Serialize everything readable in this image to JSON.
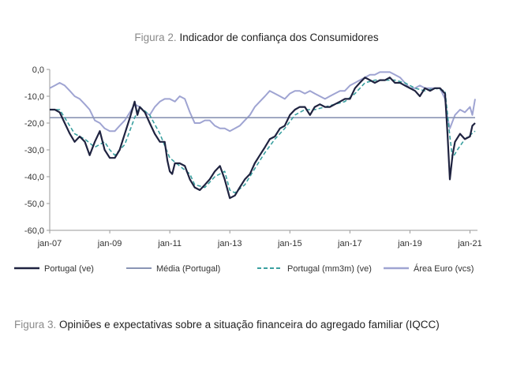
{
  "figure2": {
    "number": "Figura 2.",
    "title": "Indicador de confiança dos Consumidores"
  },
  "figure3": {
    "number": "Figura 3.",
    "title": "Opiniões e expectativas sobre a situação financeira do agregado familiar (IQCC)"
  },
  "chart_data": {
    "type": "line",
    "title": "Indicador de confiança dos Consumidores",
    "xlabel": "",
    "ylabel": "",
    "x_ticks": [
      "jan-07",
      "jan-09",
      "jan-11",
      "jan-13",
      "jan-15",
      "jan-17",
      "jan-19",
      "jan-21"
    ],
    "y_ticks": [
      "0,0",
      "-10,0",
      "-20,0",
      "-30,0",
      "-40,0",
      "-50,0",
      "-60,0"
    ],
    "ylim": [
      -60,
      0
    ],
    "grid": false,
    "legend_position": "bottom",
    "x_format": "year.month_fraction",
    "colors": {
      "portugal": "#1f2340",
      "media": "#8a95b4",
      "mm3m": "#3aa0a0",
      "area_euro": "#9fa4d2"
    },
    "series": [
      {
        "name": "Portugal (ve)",
        "style": "solid-dark",
        "points": [
          [
            2007.0,
            -15
          ],
          [
            2007.17,
            -15
          ],
          [
            2007.33,
            -16
          ],
          [
            2007.5,
            -20
          ],
          [
            2007.67,
            -24
          ],
          [
            2007.83,
            -27
          ],
          [
            2008.0,
            -25
          ],
          [
            2008.17,
            -27
          ],
          [
            2008.33,
            -32
          ],
          [
            2008.5,
            -27
          ],
          [
            2008.67,
            -23
          ],
          [
            2008.83,
            -30
          ],
          [
            2009.0,
            -33
          ],
          [
            2009.17,
            -33
          ],
          [
            2009.33,
            -30
          ],
          [
            2009.5,
            -24
          ],
          [
            2009.67,
            -18
          ],
          [
            2009.83,
            -12
          ],
          [
            2009.92,
            -17
          ],
          [
            2010.0,
            -14
          ],
          [
            2010.17,
            -16
          ],
          [
            2010.33,
            -20
          ],
          [
            2010.5,
            -24
          ],
          [
            2010.67,
            -27
          ],
          [
            2010.83,
            -27
          ],
          [
            2010.92,
            -34
          ],
          [
            2011.0,
            -38
          ],
          [
            2011.08,
            -39
          ],
          [
            2011.17,
            -35
          ],
          [
            2011.33,
            -35
          ],
          [
            2011.5,
            -36
          ],
          [
            2011.67,
            -41
          ],
          [
            2011.83,
            -44
          ],
          [
            2012.0,
            -45
          ],
          [
            2012.17,
            -43
          ],
          [
            2012.33,
            -41
          ],
          [
            2012.5,
            -38
          ],
          [
            2012.67,
            -36
          ],
          [
            2012.83,
            -41
          ],
          [
            2013.0,
            -48
          ],
          [
            2013.17,
            -47
          ],
          [
            2013.33,
            -44
          ],
          [
            2013.5,
            -41
          ],
          [
            2013.67,
            -39
          ],
          [
            2013.83,
            -35
          ],
          [
            2014.0,
            -32
          ],
          [
            2014.17,
            -29
          ],
          [
            2014.33,
            -26
          ],
          [
            2014.5,
            -25
          ],
          [
            2014.67,
            -22
          ],
          [
            2014.83,
            -21
          ],
          [
            2015.0,
            -17
          ],
          [
            2015.17,
            -15
          ],
          [
            2015.33,
            -14
          ],
          [
            2015.5,
            -14
          ],
          [
            2015.67,
            -17
          ],
          [
            2015.83,
            -14
          ],
          [
            2016.0,
            -13
          ],
          [
            2016.17,
            -14
          ],
          [
            2016.33,
            -14
          ],
          [
            2016.5,
            -13
          ],
          [
            2016.67,
            -12
          ],
          [
            2016.83,
            -11
          ],
          [
            2017.0,
            -11
          ],
          [
            2017.17,
            -7
          ],
          [
            2017.33,
            -5
          ],
          [
            2017.5,
            -3
          ],
          [
            2017.67,
            -4
          ],
          [
            2017.83,
            -5
          ],
          [
            2018.0,
            -4
          ],
          [
            2018.17,
            -4
          ],
          [
            2018.33,
            -3
          ],
          [
            2018.5,
            -5
          ],
          [
            2018.67,
            -5
          ],
          [
            2018.83,
            -6
          ],
          [
            2019.0,
            -7
          ],
          [
            2019.17,
            -8
          ],
          [
            2019.33,
            -10
          ],
          [
            2019.5,
            -7
          ],
          [
            2019.67,
            -8
          ],
          [
            2019.83,
            -7
          ],
          [
            2020.0,
            -7
          ],
          [
            2020.17,
            -9
          ],
          [
            2020.25,
            -24
          ],
          [
            2020.33,
            -41
          ],
          [
            2020.42,
            -32
          ],
          [
            2020.5,
            -27
          ],
          [
            2020.67,
            -24
          ],
          [
            2020.83,
            -26
          ],
          [
            2021.0,
            -25
          ],
          [
            2021.08,
            -21
          ],
          [
            2021.17,
            -20
          ]
        ]
      },
      {
        "name": "Média (Portugal)",
        "style": "solid-light",
        "points": [
          [
            2007.0,
            -18
          ],
          [
            2021.17,
            -18
          ]
        ]
      },
      {
        "name": "Portugal (mm3m) (ve)",
        "style": "dashed",
        "points": [
          [
            2007.0,
            -15
          ],
          [
            2007.33,
            -15
          ],
          [
            2007.5,
            -18
          ],
          [
            2007.83,
            -24
          ],
          [
            2008.17,
            -26
          ],
          [
            2008.5,
            -29
          ],
          [
            2008.83,
            -27
          ],
          [
            2009.0,
            -30
          ],
          [
            2009.17,
            -32
          ],
          [
            2009.5,
            -28
          ],
          [
            2009.83,
            -18
          ],
          [
            2010.0,
            -14
          ],
          [
            2010.33,
            -17
          ],
          [
            2010.67,
            -24
          ],
          [
            2011.0,
            -33
          ],
          [
            2011.33,
            -36
          ],
          [
            2011.67,
            -39
          ],
          [
            2011.83,
            -43
          ],
          [
            2012.17,
            -44
          ],
          [
            2012.5,
            -40
          ],
          [
            2012.83,
            -38
          ],
          [
            2013.0,
            -45
          ],
          [
            2013.17,
            -46
          ],
          [
            2013.5,
            -43
          ],
          [
            2013.83,
            -37
          ],
          [
            2014.17,
            -31
          ],
          [
            2014.5,
            -26
          ],
          [
            2014.83,
            -22
          ],
          [
            2015.17,
            -17
          ],
          [
            2015.5,
            -15
          ],
          [
            2015.83,
            -15
          ],
          [
            2016.17,
            -14
          ],
          [
            2016.5,
            -13
          ],
          [
            2016.83,
            -12
          ],
          [
            2017.17,
            -9
          ],
          [
            2017.5,
            -5
          ],
          [
            2017.83,
            -4
          ],
          [
            2018.17,
            -4
          ],
          [
            2018.5,
            -4
          ],
          [
            2018.83,
            -5
          ],
          [
            2019.17,
            -7
          ],
          [
            2019.5,
            -8
          ],
          [
            2019.83,
            -7
          ],
          [
            2020.17,
            -8
          ],
          [
            2020.33,
            -25
          ],
          [
            2020.42,
            -33
          ],
          [
            2020.58,
            -30
          ],
          [
            2020.83,
            -26
          ],
          [
            2021.17,
            -23
          ]
        ]
      },
      {
        "name": "Área Euro (vcs)",
        "style": "solid-lavender",
        "points": [
          [
            2007.0,
            -7
          ],
          [
            2007.17,
            -6
          ],
          [
            2007.33,
            -5
          ],
          [
            2007.5,
            -6
          ],
          [
            2007.67,
            -8
          ],
          [
            2007.83,
            -10
          ],
          [
            2008.0,
            -11
          ],
          [
            2008.17,
            -13
          ],
          [
            2008.33,
            -15
          ],
          [
            2008.5,
            -19
          ],
          [
            2008.67,
            -20
          ],
          [
            2008.83,
            -22
          ],
          [
            2009.0,
            -23
          ],
          [
            2009.17,
            -23
          ],
          [
            2009.33,
            -21
          ],
          [
            2009.5,
            -19
          ],
          [
            2009.67,
            -16
          ],
          [
            2009.83,
            -13
          ],
          [
            2010.0,
            -14
          ],
          [
            2010.17,
            -16
          ],
          [
            2010.33,
            -17
          ],
          [
            2010.5,
            -14
          ],
          [
            2010.67,
            -12
          ],
          [
            2010.83,
            -11
          ],
          [
            2011.0,
            -11
          ],
          [
            2011.17,
            -12
          ],
          [
            2011.33,
            -10
          ],
          [
            2011.5,
            -11
          ],
          [
            2011.67,
            -16
          ],
          [
            2011.83,
            -20
          ],
          [
            2012.0,
            -20
          ],
          [
            2012.17,
            -19
          ],
          [
            2012.33,
            -19
          ],
          [
            2012.5,
            -21
          ],
          [
            2012.67,
            -22
          ],
          [
            2012.83,
            -22
          ],
          [
            2013.0,
            -23
          ],
          [
            2013.17,
            -22
          ],
          [
            2013.33,
            -21
          ],
          [
            2013.5,
            -19
          ],
          [
            2013.67,
            -17
          ],
          [
            2013.83,
            -14
          ],
          [
            2014.0,
            -12
          ],
          [
            2014.17,
            -10
          ],
          [
            2014.33,
            -8
          ],
          [
            2014.5,
            -9
          ],
          [
            2014.67,
            -10
          ],
          [
            2014.83,
            -11
          ],
          [
            2015.0,
            -9
          ],
          [
            2015.17,
            -8
          ],
          [
            2015.33,
            -8
          ],
          [
            2015.5,
            -9
          ],
          [
            2015.67,
            -8
          ],
          [
            2015.83,
            -9
          ],
          [
            2016.0,
            -10
          ],
          [
            2016.17,
            -11
          ],
          [
            2016.33,
            -10
          ],
          [
            2016.5,
            -9
          ],
          [
            2016.67,
            -8
          ],
          [
            2016.83,
            -8
          ],
          [
            2017.0,
            -6
          ],
          [
            2017.17,
            -5
          ],
          [
            2017.33,
            -4
          ],
          [
            2017.5,
            -3
          ],
          [
            2017.67,
            -2
          ],
          [
            2017.83,
            -2
          ],
          [
            2018.0,
            -1
          ],
          [
            2018.17,
            -1
          ],
          [
            2018.33,
            -1
          ],
          [
            2018.5,
            -2
          ],
          [
            2018.67,
            -3
          ],
          [
            2018.83,
            -5
          ],
          [
            2019.0,
            -7
          ],
          [
            2019.17,
            -7
          ],
          [
            2019.33,
            -6
          ],
          [
            2019.5,
            -7
          ],
          [
            2019.67,
            -7
          ],
          [
            2019.83,
            -7
          ],
          [
            2020.0,
            -7
          ],
          [
            2020.17,
            -11
          ],
          [
            2020.25,
            -18
          ],
          [
            2020.33,
            -22
          ],
          [
            2020.5,
            -17
          ],
          [
            2020.67,
            -15
          ],
          [
            2020.83,
            -16
          ],
          [
            2021.0,
            -14
          ],
          [
            2021.08,
            -17
          ],
          [
            2021.17,
            -11
          ]
        ]
      }
    ]
  }
}
